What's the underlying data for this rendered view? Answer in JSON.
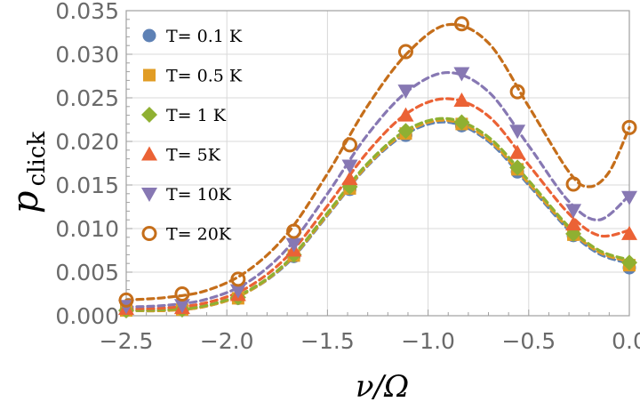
{
  "chart_data": {
    "type": "scatter",
    "title": "",
    "xlabel": "ν/Ω",
    "ylabel_main": "p",
    "ylabel_sub": "click",
    "xlim": [
      -2.5,
      0.0
    ],
    "ylim": [
      0.0,
      0.035
    ],
    "grid": true,
    "legend_position": "top-left",
    "x_ticks": [
      -2.5,
      -2.0,
      -1.5,
      -1.0,
      -0.5,
      0.0
    ],
    "x_tick_labels": [
      "−2.5",
      "−2.0",
      "−1.5",
      "−1.0",
      "−0.5",
      "0.0"
    ],
    "y_ticks": [
      0.0,
      0.005,
      0.01,
      0.015,
      0.02,
      0.025,
      0.03,
      0.035
    ],
    "y_tick_labels": [
      "0.000",
      "0.005",
      "0.010",
      "0.015",
      "0.020",
      "0.025",
      "0.030",
      "0.035"
    ],
    "x": [
      -2.5,
      -2.222,
      -1.944,
      -1.667,
      -1.389,
      -1.111,
      -0.833,
      -0.556,
      -0.278,
      0.0
    ],
    "series": [
      {
        "name": "T= 0.1 K",
        "marker": "circle",
        "color": "#5e81b5",
        "values": [
          0.0006,
          0.0007,
          0.002,
          0.0068,
          0.0145,
          0.0207,
          0.0218,
          0.0165,
          0.0092,
          0.0055
        ],
        "fit": [
          [
            -2.5,
            0.0006
          ],
          [
            -2.3,
            0.0006
          ],
          [
            -2.1,
            0.0011
          ],
          [
            -1.9,
            0.0027
          ],
          [
            -1.7,
            0.006
          ],
          [
            -1.5,
            0.0115
          ],
          [
            -1.3,
            0.0172
          ],
          [
            -1.1,
            0.021
          ],
          [
            -0.9,
            0.0222
          ],
          [
            -0.7,
            0.02
          ],
          [
            -0.5,
            0.015
          ],
          [
            -0.3,
            0.0098
          ],
          [
            -0.15,
            0.0071
          ],
          [
            0.0,
            0.006
          ]
        ]
      },
      {
        "name": "T= 0.5 K",
        "marker": "square",
        "color": "#e19c24",
        "values": [
          0.0006,
          0.0007,
          0.002,
          0.0069,
          0.0146,
          0.0209,
          0.022,
          0.0168,
          0.0093,
          0.0058
        ],
        "fit": [
          [
            -2.5,
            0.0006
          ],
          [
            -2.3,
            0.0006
          ],
          [
            -2.1,
            0.0011
          ],
          [
            -1.9,
            0.0027
          ],
          [
            -1.7,
            0.0061
          ],
          [
            -1.5,
            0.0116
          ],
          [
            -1.3,
            0.0173
          ],
          [
            -1.1,
            0.0212
          ],
          [
            -0.9,
            0.0224
          ],
          [
            -0.7,
            0.0202
          ],
          [
            -0.5,
            0.0152
          ],
          [
            -0.3,
            0.01
          ],
          [
            -0.15,
            0.0073
          ],
          [
            0.0,
            0.0062
          ]
        ]
      },
      {
        "name": "T= 1 K",
        "marker": "diamond",
        "color": "#8fb032",
        "values": [
          0.0006,
          0.0007,
          0.0021,
          0.007,
          0.0148,
          0.0212,
          0.0222,
          0.017,
          0.0094,
          0.0061
        ],
        "fit": [
          [
            -2.5,
            0.0006
          ],
          [
            -2.3,
            0.0007
          ],
          [
            -2.1,
            0.0012
          ],
          [
            -1.9,
            0.0028
          ],
          [
            -1.7,
            0.0062
          ],
          [
            -1.5,
            0.0118
          ],
          [
            -1.3,
            0.0175
          ],
          [
            -1.1,
            0.0214
          ],
          [
            -0.9,
            0.0226
          ],
          [
            -0.7,
            0.0205
          ],
          [
            -0.5,
            0.0155
          ],
          [
            -0.3,
            0.0102
          ],
          [
            -0.15,
            0.0075
          ],
          [
            0.0,
            0.0064
          ]
        ]
      },
      {
        "name": "T= 5K",
        "marker": "triangle-up",
        "color": "#eb6235",
        "values": [
          0.0008,
          0.0009,
          0.0024,
          0.0075,
          0.0157,
          0.023,
          0.0247,
          0.0187,
          0.0105,
          0.0094
        ],
        "fit": [
          [
            -2.5,
            0.0008
          ],
          [
            -2.3,
            0.0009
          ],
          [
            -2.1,
            0.0015
          ],
          [
            -1.9,
            0.0032
          ],
          [
            -1.7,
            0.0068
          ],
          [
            -1.5,
            0.0126
          ],
          [
            -1.3,
            0.0188
          ],
          [
            -1.1,
            0.0233
          ],
          [
            -0.9,
            0.0249
          ],
          [
            -0.7,
            0.0229
          ],
          [
            -0.5,
            0.0173
          ],
          [
            -0.3,
            0.0117
          ],
          [
            -0.15,
            0.0092
          ],
          [
            0.0,
            0.0098
          ]
        ]
      },
      {
        "name": "T= 10K",
        "marker": "triangle-down",
        "color": "#8778b3",
        "values": [
          0.0011,
          0.0012,
          0.0029,
          0.0082,
          0.0172,
          0.0258,
          0.0278,
          0.0212,
          0.0121,
          0.0136
        ],
        "fit": [
          [
            -2.5,
            0.001
          ],
          [
            -2.3,
            0.0012
          ],
          [
            -2.1,
            0.0019
          ],
          [
            -1.9,
            0.0038
          ],
          [
            -1.7,
            0.0077
          ],
          [
            -1.5,
            0.014
          ],
          [
            -1.3,
            0.0208
          ],
          [
            -1.1,
            0.0258
          ],
          [
            -0.9,
            0.0279
          ],
          [
            -0.7,
            0.0257
          ],
          [
            -0.5,
            0.0195
          ],
          [
            -0.3,
            0.0131
          ],
          [
            -0.15,
            0.011
          ],
          [
            0.0,
            0.0138
          ]
        ]
      },
      {
        "name": "T= 20K",
        "marker": "open-circle",
        "color": "#c56e1a",
        "values": [
          0.0018,
          0.0025,
          0.0042,
          0.0097,
          0.0196,
          0.0303,
          0.0335,
          0.0257,
          0.0151,
          0.0216
        ],
        "fit": [
          [
            -2.5,
            0.0018
          ],
          [
            -2.3,
            0.0021
          ],
          [
            -2.1,
            0.0029
          ],
          [
            -1.9,
            0.0051
          ],
          [
            -1.7,
            0.0094
          ],
          [
            -1.5,
            0.0163
          ],
          [
            -1.3,
            0.0241
          ],
          [
            -1.1,
            0.0302
          ],
          [
            -0.9,
            0.0334
          ],
          [
            -0.7,
            0.0313
          ],
          [
            -0.5,
            0.024
          ],
          [
            -0.3,
            0.0165
          ],
          [
            -0.2,
            0.0148
          ],
          [
            -0.1,
            0.0165
          ],
          [
            0.0,
            0.0216
          ]
        ]
      }
    ]
  }
}
